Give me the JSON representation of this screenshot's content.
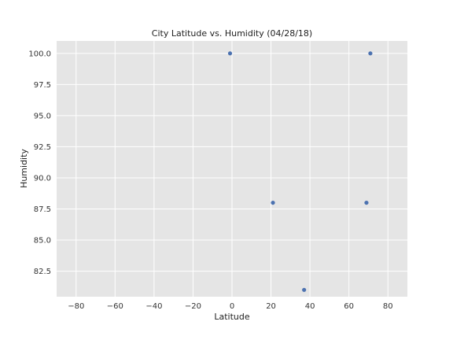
{
  "chart_data": {
    "type": "scatter",
    "title": "City Latitude vs. Humidity (04/28/18)",
    "xlabel": "Latitude",
    "ylabel": "Humidity",
    "xlim": [
      -90,
      90
    ],
    "ylim": [
      80.45,
      101
    ],
    "xticks": [
      -80,
      -60,
      -40,
      -20,
      0,
      20,
      40,
      60,
      80
    ],
    "xtick_labels": [
      "−80",
      "−60",
      "−40",
      "−20",
      "0",
      "20",
      "40",
      "60",
      "80"
    ],
    "yticks": [
      82.5,
      85.0,
      87.5,
      90.0,
      92.5,
      95.0,
      97.5,
      100.0
    ],
    "ytick_labels": [
      "82.5",
      "85.0",
      "87.5",
      "90.0",
      "92.5",
      "95.0",
      "97.5",
      "100.0"
    ],
    "grid": true,
    "points": [
      {
        "x": -1,
        "y": 100
      },
      {
        "x": 71,
        "y": 100
      },
      {
        "x": 21,
        "y": 88
      },
      {
        "x": 69,
        "y": 88
      },
      {
        "x": 37,
        "y": 81
      }
    ],
    "colors": {
      "background": "#e5e5e5",
      "grid": "#ffffff",
      "marker": "#4c72b0"
    }
  }
}
